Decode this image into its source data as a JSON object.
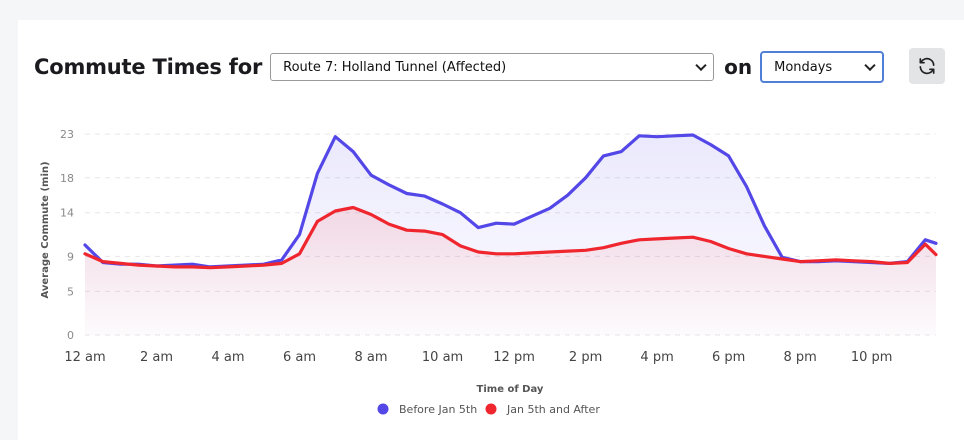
{
  "header": {
    "title": "Commute Times for",
    "route_value": "Route 7: Holland Tunnel (Affected)",
    "on_text": "on",
    "day_value": "Mondays"
  },
  "chart_data": {
    "type": "line",
    "x": [
      0,
      0.5,
      1,
      1.5,
      2,
      2.5,
      3,
      3.5,
      4,
      4.5,
      5,
      5.5,
      6,
      6.5,
      7,
      7.5,
      8,
      8.5,
      9,
      9.5,
      10,
      10.5,
      11,
      11.5,
      12,
      12.5,
      13,
      13.5,
      14,
      14.5,
      15,
      15.5,
      16,
      16.5,
      17,
      17.5,
      18,
      18.5,
      19,
      19.5,
      20,
      20.5,
      21,
      21.5,
      22,
      22.5,
      23,
      23.5,
      23.8
    ],
    "xlabel": "Time of Day",
    "ylabel": "Average Commute (min)",
    "ylim": [
      0,
      24.5
    ],
    "xlim": [
      0,
      23.8
    ],
    "yticks": [
      0,
      5,
      9,
      14,
      18,
      23
    ],
    "xticks": [
      {
        "value": 0,
        "label": "12 am"
      },
      {
        "value": 2,
        "label": "2 am"
      },
      {
        "value": 4,
        "label": "4 am"
      },
      {
        "value": 6,
        "label": "6 am"
      },
      {
        "value": 8,
        "label": "8 am"
      },
      {
        "value": 10,
        "label": "10 am"
      },
      {
        "value": 12,
        "label": "12 pm"
      },
      {
        "value": 14,
        "label": "2 pm"
      },
      {
        "value": 16,
        "label": "4 pm"
      },
      {
        "value": 18,
        "label": "6 pm"
      },
      {
        "value": 20,
        "label": "8 pm"
      },
      {
        "value": 22,
        "label": "10 pm"
      }
    ],
    "grid": true,
    "legend_position": "bottom-center",
    "series": [
      {
        "name": "Before Jan 5th",
        "color": "#5447e8",
        "values": [
          10.3,
          8.3,
          8.1,
          8.1,
          7.9,
          8.0,
          8.1,
          7.8,
          7.9,
          8.0,
          8.1,
          8.6,
          11.5,
          18.5,
          22.7,
          21.0,
          18.3,
          17.2,
          16.2,
          15.9,
          15.0,
          14.0,
          12.3,
          12.8,
          12.7,
          13.6,
          14.5,
          16.0,
          18.0,
          20.5,
          21.0,
          22.8,
          22.7,
          22.8,
          22.9,
          21.8,
          20.5,
          17.0,
          12.5,
          8.9,
          8.4,
          8.4,
          8.5,
          8.4,
          8.3,
          8.2,
          8.4,
          10.9,
          10.5
        ]
      },
      {
        "name": "Jan 5th and After",
        "color": "#f0262e",
        "values": [
          9.3,
          8.4,
          8.2,
          8.0,
          7.9,
          7.8,
          7.8,
          7.7,
          7.8,
          7.9,
          8.0,
          8.2,
          9.3,
          13.0,
          14.2,
          14.6,
          13.8,
          12.7,
          12.0,
          11.9,
          11.5,
          10.2,
          9.5,
          9.3,
          9.3,
          9.4,
          9.5,
          9.6,
          9.7,
          10.0,
          10.5,
          10.9,
          11.0,
          11.1,
          11.2,
          10.7,
          9.9,
          9.3,
          9.0,
          8.7,
          8.4,
          8.5,
          8.6,
          8.5,
          8.4,
          8.2,
          8.3,
          10.4,
          9.2
        ]
      }
    ]
  }
}
